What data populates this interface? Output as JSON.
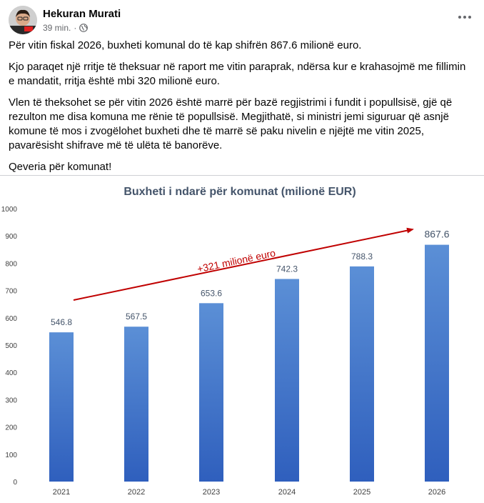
{
  "post": {
    "author": "Hekuran Murati",
    "time": "39 min.",
    "separator": "·",
    "paragraphs": [
      "Për vitin fiskal 2026, buxheti komunal do të kap shifrën 867.6 milionë euro.",
      "Kjo paraqet një rritje të theksuar në raport me vitin paraprak, ndërsa kur e krahasojmë me fillimin e mandatit, rritja është mbi 320 milionë euro.",
      "Vlen të theksohet se për vitin 2026 është marrë për bazë regjistrimi i fundit i popullsisë, gjë që rezulton me disa komuna me rënie të popullsisë. Megjithatë, si ministri jemi siguruar që asnjë komune të mos i zvogëlohet buxheti dhe të marrë së paku nivelin e njëjtë me vitin 2025, pavarësisht shifrave më të ulëta të banorëve.",
      "Qeveria për komunat!"
    ],
    "icons": {
      "audience": "globe-icon",
      "menu": "more-options-icon"
    }
  },
  "chart_data": {
    "type": "bar",
    "title": "Buxheti i ndarë për komunat (milionë EUR)",
    "categories": [
      "2021",
      "2022",
      "2023",
      "2024",
      "2025",
      "2026"
    ],
    "values": [
      546.8,
      567.5,
      653.6,
      742.3,
      788.3,
      867.6
    ],
    "value_labels": [
      "546.8",
      "567.5",
      "653.6",
      "742.3",
      "788.3",
      "867.6"
    ],
    "ylim": [
      0,
      1000
    ],
    "yticks": [
      0,
      100,
      200,
      300,
      400,
      500,
      600,
      700,
      800,
      900,
      1000
    ],
    "grid": false,
    "legend": "none",
    "annotation": {
      "text": "+321 milionë euro",
      "color": "#c00000"
    },
    "colors": {
      "bar_top": "#5b8fd6",
      "bar_bottom": "#2f5fbd",
      "title": "#44546a",
      "label": "#404040"
    }
  }
}
